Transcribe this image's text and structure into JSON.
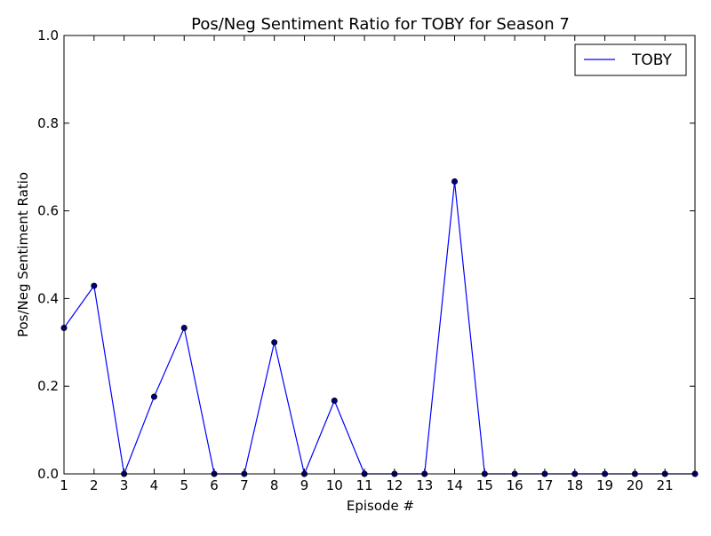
{
  "colors": {
    "series_line": "#0000ff",
    "marker_fill": "#00007f",
    "axes": "#000000",
    "background": "#ffffff"
  },
  "chart_data": {
    "type": "line",
    "title": "Pos/Neg Sentiment Ratio for TOBY for Season 7",
    "xlabel": "Episode #",
    "ylabel": "Pos/Neg Sentiment Ratio",
    "xlim": [
      1,
      22
    ],
    "ylim": [
      0.0,
      1.0
    ],
    "x_ticks": [
      1,
      2,
      3,
      4,
      5,
      6,
      7,
      8,
      9,
      10,
      11,
      12,
      13,
      14,
      15,
      16,
      17,
      18,
      19,
      20,
      21
    ],
    "y_ticks": [
      "0.0",
      "0.2",
      "0.4",
      "0.6",
      "0.8",
      "1.0"
    ],
    "grid": false,
    "legend_position": "top-right",
    "marker": "circle",
    "series": [
      {
        "name": "TOBY",
        "x": [
          1,
          2,
          3,
          4,
          5,
          6,
          7,
          8,
          9,
          10,
          11,
          12,
          13,
          14,
          15,
          16,
          17,
          18,
          19,
          20,
          21,
          22
        ],
        "y": [
          0.333,
          0.429,
          0.0,
          0.176,
          0.333,
          0.0,
          0.0,
          0.3,
          0.0,
          0.167,
          0.0,
          0.0,
          0.0,
          0.667,
          0.0,
          0.0,
          0.0,
          0.0,
          0.0,
          0.0,
          0.0,
          0.0
        ]
      }
    ]
  }
}
